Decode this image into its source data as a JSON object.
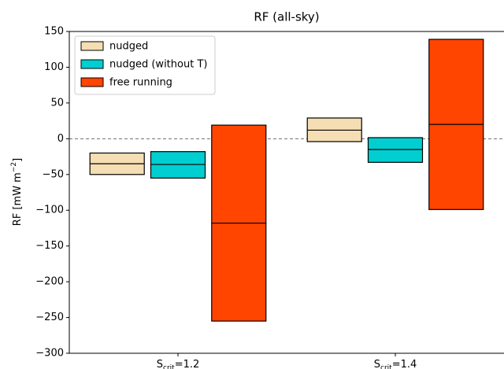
{
  "chart_data": {
    "type": "floating_bar",
    "title": "RF (all-sky)",
    "ylabel": [
      "RF [mW m",
      "−2",
      "]"
    ],
    "categories": [
      [
        "S",
        "crit",
        "=1.2"
      ],
      [
        "S",
        "crit",
        "=1.4"
      ]
    ],
    "series": [
      {
        "name": "nudged",
        "color": "#f5deb3",
        "low": [
          -50,
          -4
        ],
        "high": [
          -20,
          29
        ],
        "values": [
          -35,
          12
        ]
      },
      {
        "name": "nudged (without T)",
        "color": "#00ced1",
        "low": [
          -55,
          -33
        ],
        "high": [
          -18,
          1.5
        ],
        "values": [
          -36,
          -15
        ]
      },
      {
        "name": "free running",
        "color": "#ff4500",
        "low": [
          -255,
          -99
        ],
        "high": [
          19,
          139
        ],
        "values": [
          -118,
          20
        ]
      }
    ],
    "ylim": [
      -300,
      150
    ],
    "yticks": [
      150,
      100,
      50,
      0,
      {
        "value": -50,
        "label": "−50"
      },
      {
        "value": -100,
        "label": "−100"
      },
      {
        "value": -150,
        "label": "−150"
      },
      {
        "value": -200,
        "label": "−200"
      },
      {
        "value": -250,
        "label": "−250"
      },
      {
        "value": -300,
        "label": "−300"
      }
    ],
    "reference_line": 0,
    "legend": "upper left",
    "grid": false
  }
}
